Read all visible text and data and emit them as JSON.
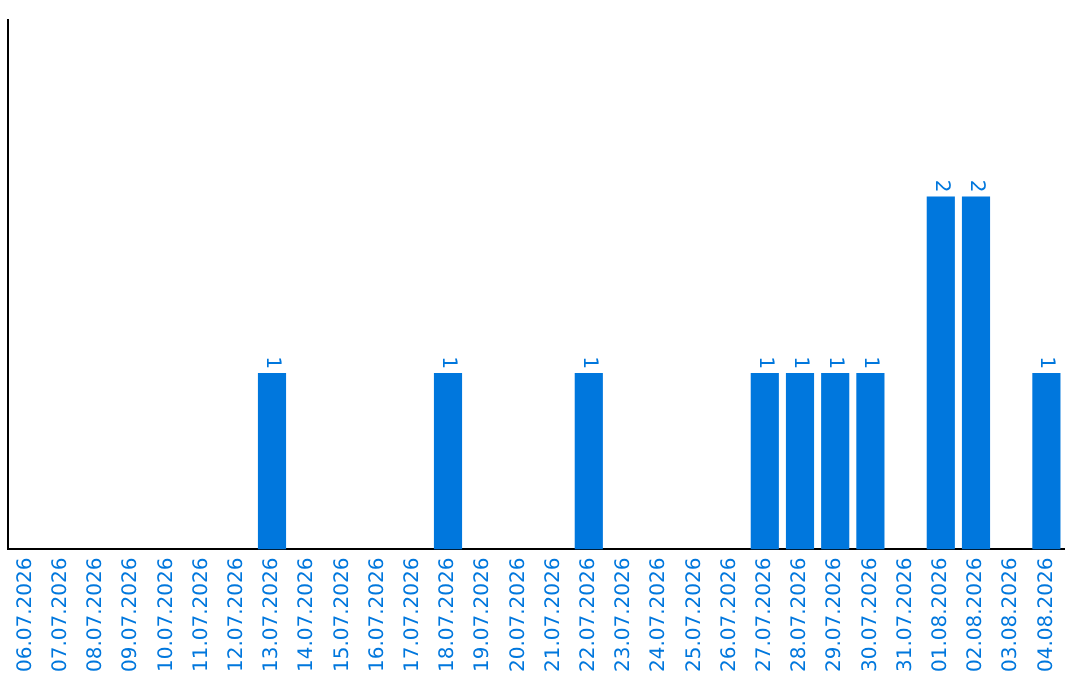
{
  "chart_data": {
    "type": "bar",
    "categories": [
      "06.07.2026",
      "07.07.2026",
      "08.07.2026",
      "09.07.2026",
      "10.07.2026",
      "11.07.2026",
      "12.07.2026",
      "13.07.2026",
      "14.07.2026",
      "15.07.2026",
      "16.07.2026",
      "17.07.2026",
      "18.07.2026",
      "19.07.2026",
      "20.07.2026",
      "21.07.2026",
      "22.07.2026",
      "23.07.2026",
      "24.07.2026",
      "25.07.2026",
      "26.07.2026",
      "27.07.2026",
      "28.07.2026",
      "29.07.2026",
      "30.07.2026",
      "31.07.2026",
      "01.08.2026",
      "02.08.2026",
      "03.08.2026",
      "04.08.2026"
    ],
    "values": [
      0,
      0,
      0,
      0,
      0,
      0,
      0,
      1,
      0,
      0,
      0,
      0,
      1,
      0,
      0,
      0,
      1,
      0,
      0,
      0,
      0,
      1,
      1,
      1,
      1,
      0,
      2,
      2,
      0,
      1
    ],
    "value_labels": [
      null,
      null,
      null,
      null,
      null,
      null,
      null,
      "1",
      null,
      null,
      null,
      null,
      "1",
      null,
      null,
      null,
      "1",
      null,
      null,
      null,
      null,
      "1",
      "1",
      "1",
      "1",
      null,
      "2",
      "2",
      null,
      "1"
    ],
    "color": "#0077dd",
    "grid": false,
    "legend": false
  }
}
